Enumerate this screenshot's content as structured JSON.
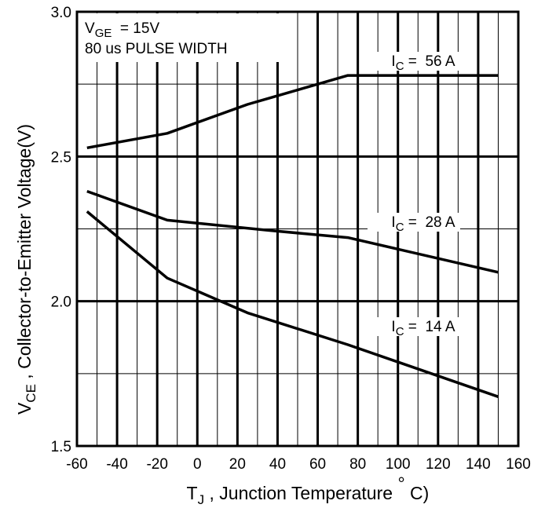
{
  "chart_data": {
    "type": "line",
    "xlabel": {
      "main": "T",
      "sub": "J",
      "rest": " , Junction Temperature ",
      "deg": "°",
      "unit": " C)"
    },
    "ylabel": {
      "main": "V",
      "sub": "CE",
      "rest": " , Collector-to-Emitter Voltage(V)"
    },
    "xlim": [
      -60,
      160
    ],
    "ylim": [
      1.5,
      3.0
    ],
    "x_ticks": [
      -60,
      -40,
      -20,
      0,
      20,
      40,
      60,
      80,
      100,
      120,
      140,
      160
    ],
    "x_tick_labels": [
      "-60",
      "-40",
      "-20",
      "0",
      "20",
      "40",
      "60",
      "80",
      "100",
      "120",
      "140",
      "160"
    ],
    "y_ticks": [
      1.5,
      2.0,
      2.5,
      3.0
    ],
    "y_tick_labels": [
      "1.5",
      "2.0",
      "2.5",
      "3.0"
    ],
    "grid": true,
    "conditions": {
      "line1": {
        "main": "V",
        "sub": "GE",
        "rest": "  = 15V"
      },
      "line2": "80 us PULSE WIDTH"
    },
    "series": [
      {
        "label": {
          "main": "I",
          "sub": "C",
          "rest": " =  56 A"
        },
        "x": [
          -55,
          -15,
          25,
          60,
          75,
          150
        ],
        "y": [
          2.53,
          2.58,
          2.68,
          2.75,
          2.78,
          2.78
        ]
      },
      {
        "label": {
          "main": "I",
          "sub": "C",
          "rest": " =  28 A"
        },
        "x": [
          -55,
          -15,
          35,
          75,
          150
        ],
        "y": [
          2.38,
          2.28,
          2.245,
          2.22,
          2.1
        ]
      },
      {
        "label": {
          "main": "I",
          "sub": "C",
          "rest": " =  14 A"
        },
        "x": [
          -55,
          -15,
          25,
          75,
          150
        ],
        "y": [
          2.31,
          2.08,
          1.96,
          1.85,
          1.67
        ]
      }
    ]
  }
}
